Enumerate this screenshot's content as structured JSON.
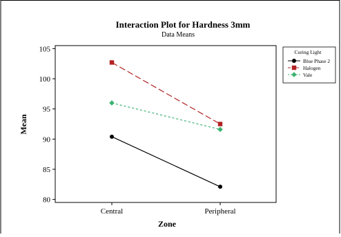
{
  "chart_data": {
    "type": "line",
    "title": "Interaction Plot for Hardness 3mm",
    "subtitle": "Data Means",
    "xlabel": "Zone",
    "ylabel": "Mean",
    "categories": [
      "Central",
      "Peripheral"
    ],
    "ylim": [
      79.5,
      105.5
    ],
    "yticks": [
      80,
      85,
      90,
      95,
      100,
      105
    ],
    "grid": false,
    "legend": {
      "title": "Curing Light",
      "placement": "right"
    },
    "series": [
      {
        "name": "Blue Phase 2",
        "values": [
          90.4,
          82.1
        ],
        "color": "#000000",
        "marker": "circle",
        "dash": "solid"
      },
      {
        "name": "Halogen",
        "values": [
          102.7,
          92.5
        ],
        "color": "#b22222",
        "marker": "square",
        "dash": "dashed"
      },
      {
        "name": "Vale",
        "values": [
          96.0,
          91.6
        ],
        "color": "#3cb371",
        "marker": "diamond",
        "dash": "dotted"
      }
    ]
  }
}
